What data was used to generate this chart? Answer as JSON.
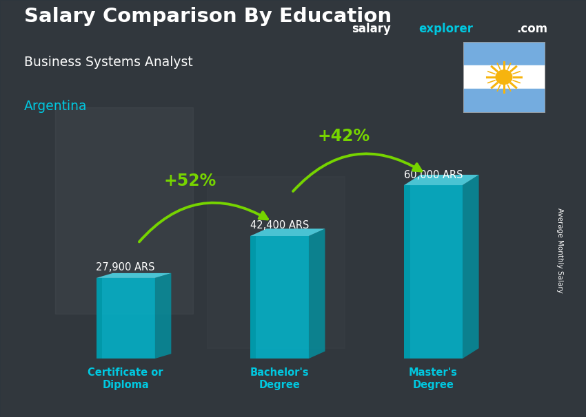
{
  "title_main": "Salary Comparison By Education",
  "title_sub": "Business Systems Analyst",
  "title_country": "Argentina",
  "watermark_salary": "salary",
  "watermark_explorer": "explorer",
  "watermark_com": ".com",
  "ylabel": "Average Monthly Salary",
  "categories": [
    "Certificate or\nDiploma",
    "Bachelor's\nDegree",
    "Master's\nDegree"
  ],
  "values": [
    27900,
    42400,
    60000
  ],
  "value_labels": [
    "27,900 ARS",
    "42,400 ARS",
    "60,000 ARS"
  ],
  "pct_labels": [
    "+52%",
    "+42%"
  ],
  "bar_front_color": "#00bcd4",
  "bar_left_color": "#0097a7",
  "bar_top_color": "#4dd0e1",
  "bar_alpha": 0.82,
  "bg_dark": "#1c2a35",
  "text_white": "#ffffff",
  "text_cyan": "#00c8e0",
  "text_green": "#76d400",
  "arrow_green": "#76d400",
  "flag_blue": "#74acdf",
  "flag_white": "#ffffff",
  "flag_sun": "#F6B40E",
  "ylim_max": 75000,
  "bar_width": 0.38,
  "x_positions": [
    0,
    1,
    2
  ],
  "figsize": [
    8.5,
    6.06
  ],
  "dpi": 100
}
